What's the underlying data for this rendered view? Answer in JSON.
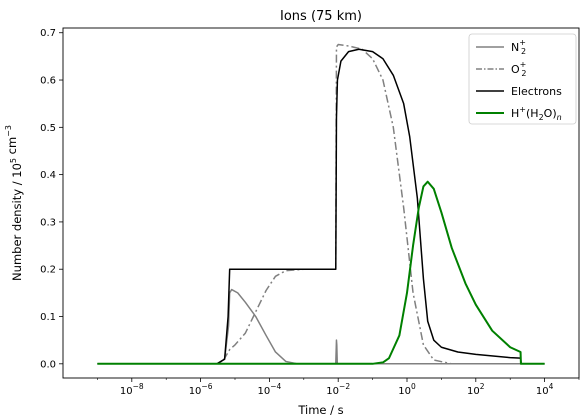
{
  "chart_data": {
    "type": "line",
    "title": "Ions (75 km)",
    "xlabel": "Time / s",
    "ylabel": "Number density / 10^5 cm^-3",
    "x_scale": "log",
    "xlim": [
      1e-10,
      100000.0
    ],
    "ylim": [
      -0.03,
      0.71
    ],
    "x_ticks": [
      {
        "value": 1e-08,
        "base": "10",
        "exp": "−8"
      },
      {
        "value": 1e-06,
        "base": "10",
        "exp": "−6"
      },
      {
        "value": 0.0001,
        "base": "10",
        "exp": "−4"
      },
      {
        "value": 0.01,
        "base": "10",
        "exp": "−2"
      },
      {
        "value": 1,
        "base": "10",
        "exp": "0"
      },
      {
        "value": 100.0,
        "base": "10",
        "exp": "2"
      },
      {
        "value": 10000.0,
        "base": "10",
        "exp": "4"
      }
    ],
    "y_ticks": [
      {
        "value": 0.0,
        "label": "0.0"
      },
      {
        "value": 0.1,
        "label": "0.1"
      },
      {
        "value": 0.2,
        "label": "0.2"
      },
      {
        "value": 0.3,
        "label": "0.3"
      },
      {
        "value": 0.4,
        "label": "0.4"
      },
      {
        "value": 0.5,
        "label": "0.5"
      },
      {
        "value": 0.6,
        "label": "0.6"
      },
      {
        "value": 0.7,
        "label": "0.7"
      }
    ],
    "grid": false,
    "legend_position": "top-right",
    "series": [
      {
        "name": "N2+",
        "legend": {
          "main": "N",
          "sub": "2",
          "sup": "+"
        },
        "color": "#808080",
        "dash": "solid",
        "points": [
          [
            1e-09,
            0
          ],
          [
            3e-06,
            0
          ],
          [
            5e-06,
            0.01
          ],
          [
            6.5e-06,
            0.08
          ],
          [
            7e-06,
            0.15
          ],
          [
            8e-06,
            0.157
          ],
          [
            1.2e-05,
            0.15
          ],
          [
            2e-05,
            0.13
          ],
          [
            4e-05,
            0.1
          ],
          [
            8e-05,
            0.06
          ],
          [
            0.00015,
            0.025
          ],
          [
            0.0003,
            0.005
          ],
          [
            0.0006,
            0.0005
          ],
          [
            0.001,
            0
          ],
          [
            0.0085,
            0
          ],
          [
            0.0089,
            0.05
          ],
          [
            0.0091,
            0.04
          ],
          [
            0.0094,
            0
          ],
          [
            0.01,
            0
          ],
          [
            0.002,
            0
          ],
          [
            2000,
            0
          ],
          [
            10000.0,
            0
          ]
        ]
      },
      {
        "name": "O2+",
        "legend": {
          "main": "O",
          "sub": "2",
          "sup": "+"
        },
        "color": "#808080",
        "dash": "dashdot",
        "points": [
          [
            1e-09,
            0
          ],
          [
            4e-06,
            0
          ],
          [
            7e-06,
            0.03
          ],
          [
            1e-05,
            0.04
          ],
          [
            2e-05,
            0.065
          ],
          [
            4e-05,
            0.11
          ],
          [
            8e-05,
            0.155
          ],
          [
            0.00015,
            0.185
          ],
          [
            0.0003,
            0.197
          ],
          [
            0.001,
            0.2
          ],
          [
            0.0085,
            0.2
          ],
          [
            0.0089,
            0.67
          ],
          [
            0.01,
            0.675
          ],
          [
            0.02,
            0.672
          ],
          [
            0.05,
            0.665
          ],
          [
            0.1,
            0.645
          ],
          [
            0.2,
            0.6
          ],
          [
            0.4,
            0.5
          ],
          [
            0.8,
            0.33
          ],
          [
            1.5,
            0.15
          ],
          [
            3,
            0.04
          ],
          [
            6,
            0.008
          ],
          [
            20,
            0
          ],
          [
            10000.0,
            0
          ]
        ]
      },
      {
        "name": "Electrons",
        "legend": {
          "main": "Electrons"
        },
        "color": "#000000",
        "dash": "solid",
        "points": [
          [
            1e-09,
            0
          ],
          [
            3e-06,
            0
          ],
          [
            5e-06,
            0.01
          ],
          [
            6.3e-06,
            0.1
          ],
          [
            7e-06,
            0.2
          ],
          [
            0.001,
            0.2
          ],
          [
            0.0085,
            0.2
          ],
          [
            0.0089,
            0.52
          ],
          [
            0.0095,
            0.6
          ],
          [
            0.012,
            0.64
          ],
          [
            0.02,
            0.66
          ],
          [
            0.04,
            0.665
          ],
          [
            0.1,
            0.66
          ],
          [
            0.2,
            0.645
          ],
          [
            0.4,
            0.61
          ],
          [
            0.8,
            0.55
          ],
          [
            1.2,
            0.48
          ],
          [
            2,
            0.35
          ],
          [
            3,
            0.18
          ],
          [
            4,
            0.09
          ],
          [
            6,
            0.05
          ],
          [
            10,
            0.035
          ],
          [
            30,
            0.025
          ],
          [
            100,
            0.02
          ],
          [
            1000,
            0.013
          ],
          [
            2000,
            0.012
          ],
          [
            2100,
            0
          ],
          [
            10000.0,
            0
          ]
        ]
      },
      {
        "name": "H+(H2O)n",
        "legend": {
          "main": "H",
          "sup1": "+",
          "mid": "(H",
          "sub": "2",
          "tail": "O)",
          "sub2": "n"
        },
        "color": "#008000",
        "dash": "solid",
        "width": 2,
        "points": [
          [
            1e-09,
            0
          ],
          [
            0.1,
            0
          ],
          [
            0.2,
            0.003
          ],
          [
            0.3,
            0.012
          ],
          [
            0.6,
            0.06
          ],
          [
            1,
            0.15
          ],
          [
            1.5,
            0.25
          ],
          [
            2.2,
            0.33
          ],
          [
            3,
            0.375
          ],
          [
            4,
            0.385
          ],
          [
            6,
            0.37
          ],
          [
            10,
            0.32
          ],
          [
            20,
            0.245
          ],
          [
            50,
            0.17
          ],
          [
            100,
            0.125
          ],
          [
            300,
            0.07
          ],
          [
            1000,
            0.035
          ],
          [
            2000,
            0.025
          ],
          [
            2050,
            0
          ],
          [
            10000.0,
            0
          ]
        ]
      }
    ]
  }
}
